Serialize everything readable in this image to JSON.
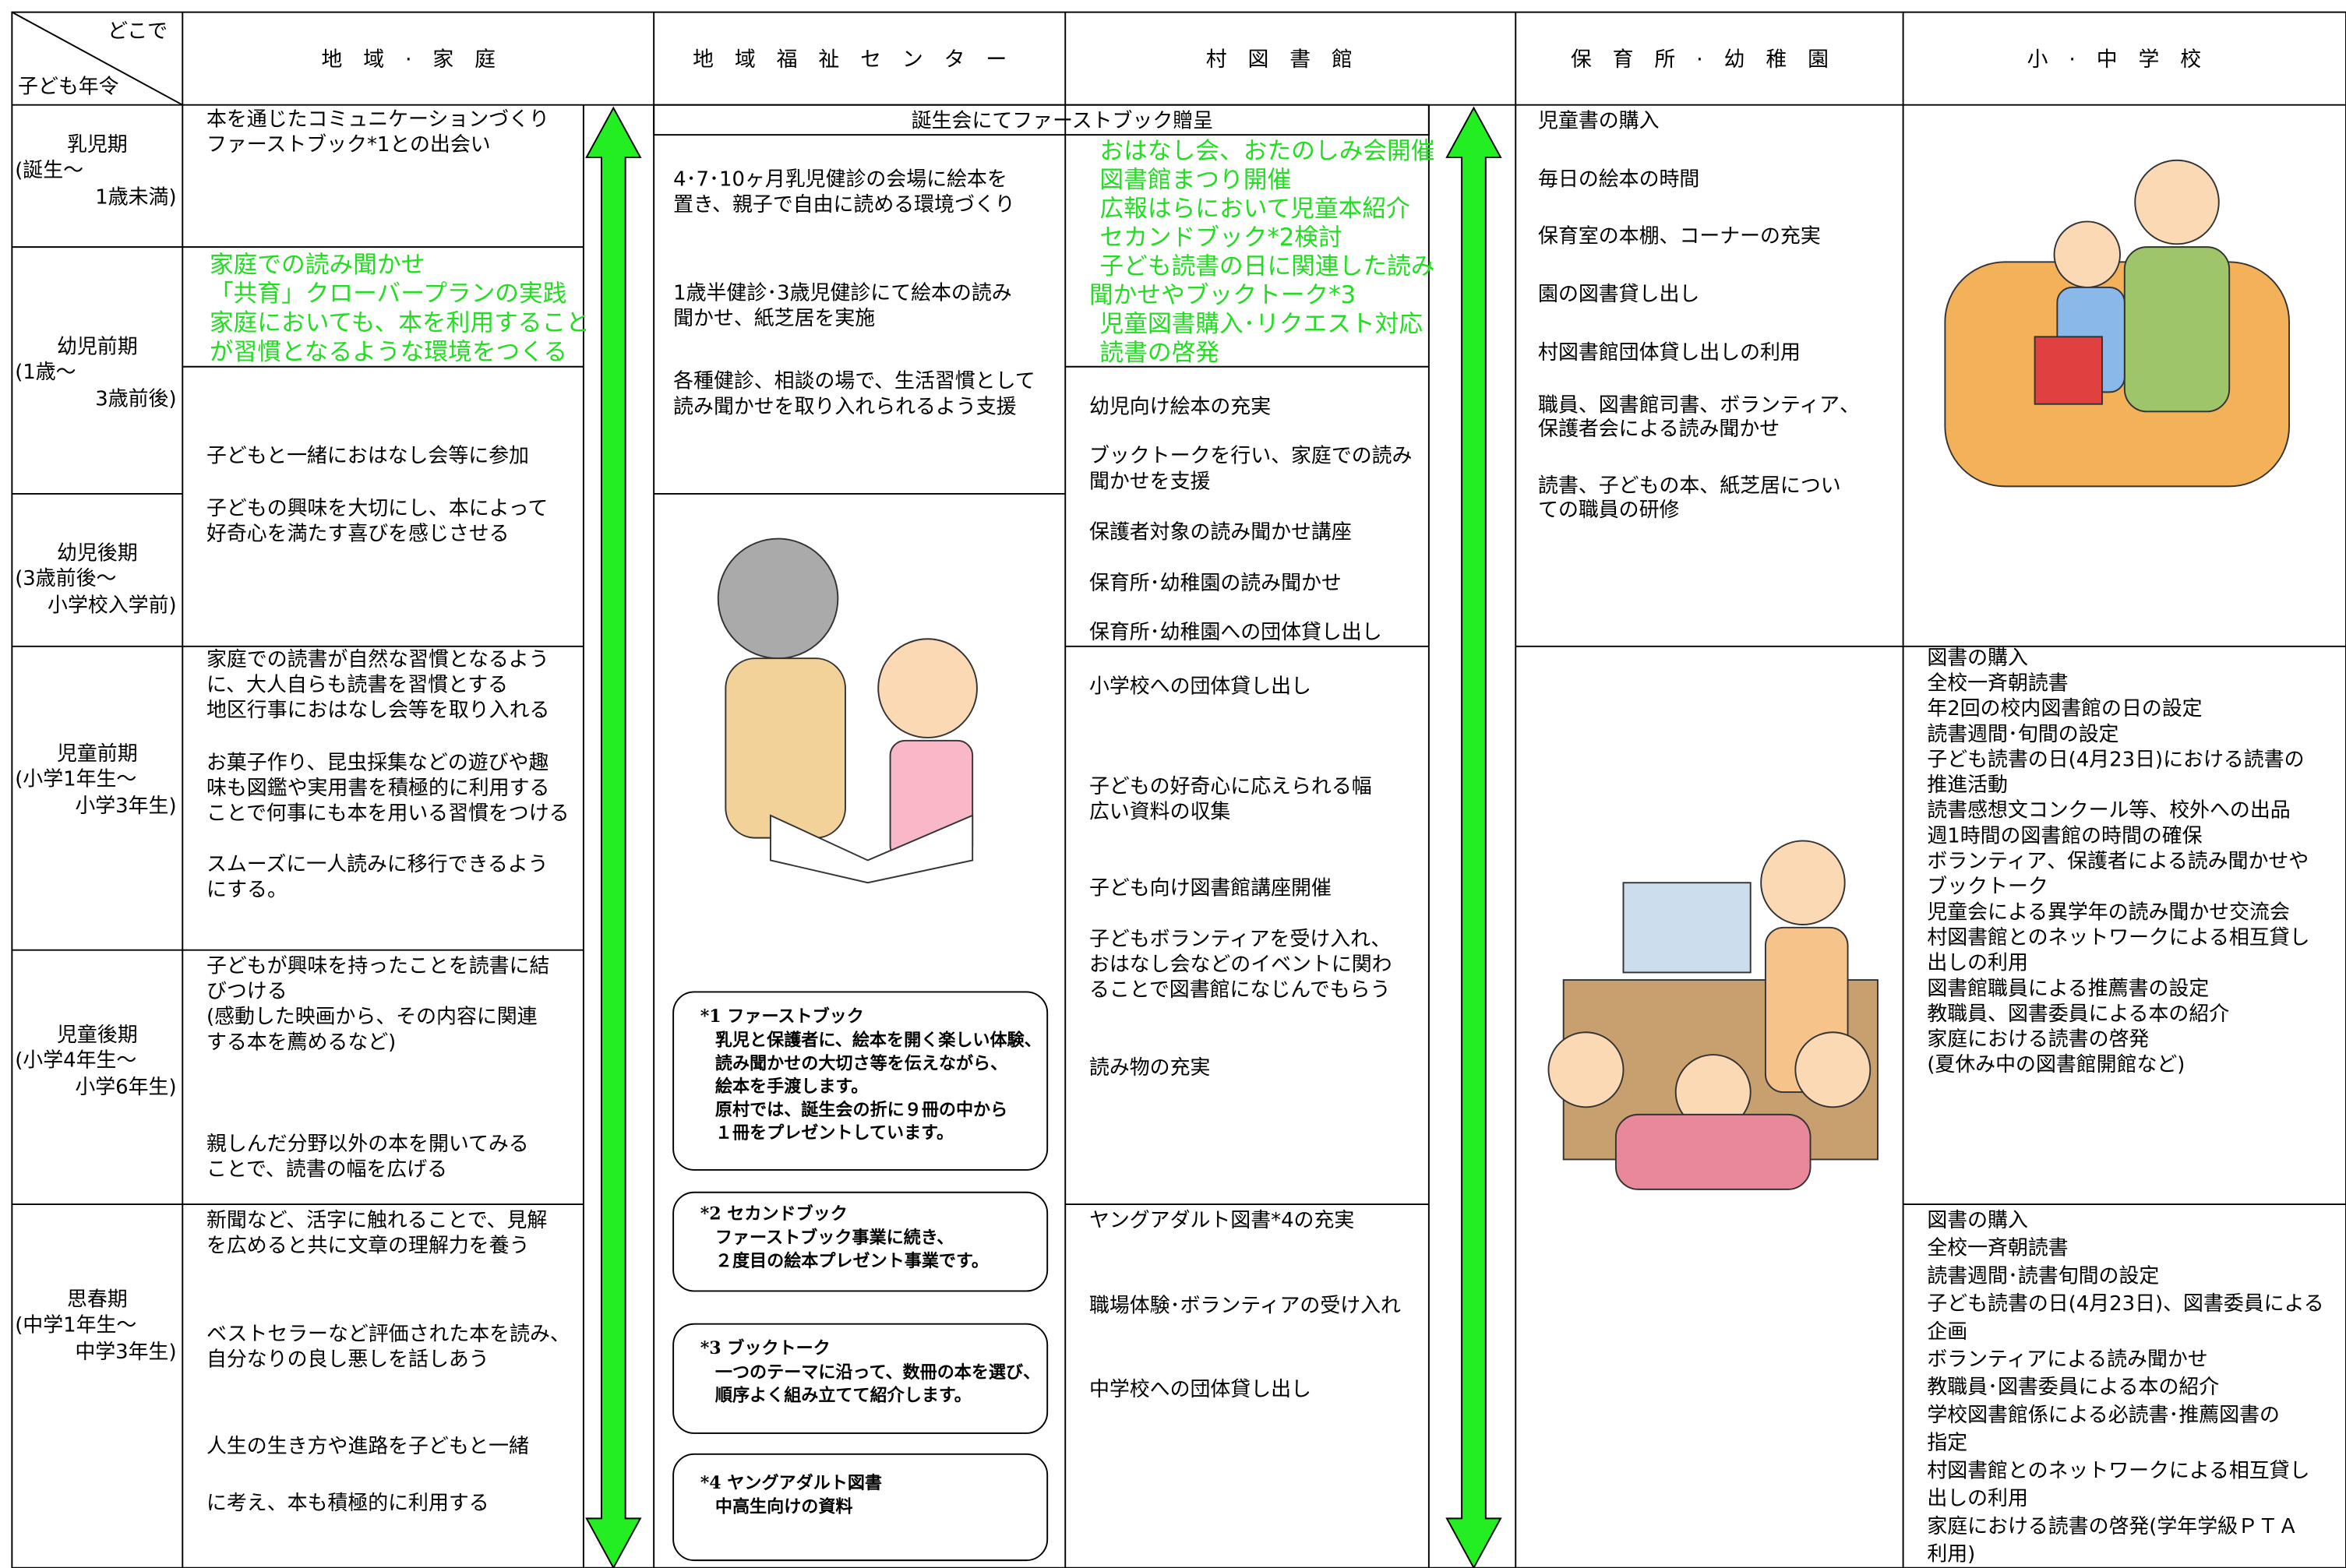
{
  "header": {
    "corner_top": "どこで",
    "corner_bottom": "子ども年令",
    "columns": [
      "地域·家庭",
      "地域福祉センター",
      "村図書館",
      "保育所·幼稚園",
      "小·中学校"
    ]
  },
  "ages": [
    {
      "name": "乳児期",
      "range": [
        "(誕生～",
        "1歳未満)"
      ]
    },
    {
      "name": "幼児前期",
      "range": [
        "(1歳～",
        "3歳前後)"
      ]
    },
    {
      "name": "幼児後期",
      "range": [
        "(3歳前後～",
        "小学校入学前)"
      ]
    },
    {
      "name": "児童前期",
      "range": [
        "(小学1年生～",
        "小学3年生)"
      ]
    },
    {
      "name": "児童後期",
      "range": [
        "(小学4年生～",
        "小学6年生)"
      ]
    },
    {
      "name": "思春期",
      "range": [
        "(中学1年生～",
        "中学3年生)"
      ]
    }
  ],
  "family": {
    "blocks": [
      [
        "本を通じたコミュニケーションづくり",
        "ファーストブック*1との出会い"
      ],
      [
        "子どもと一緒におはなし会等に参加"
      ],
      [
        "子どもの興味を大切にし、本によって",
        "好奇心を満たす喜びを感じさせる"
      ],
      [
        "家庭での読書が自然な習慣となるよう",
        "に、大人自らも読書を習慣とする",
        "地区行事におはなし会等を取り入れる"
      ],
      [
        "お菓子作り、昆虫採集などの遊びや趣",
        "味も図鑑や実用書を積極的に利用する",
        "ことで何事にも本を用いる習慣をつける"
      ],
      [
        "スムーズに一人読みに移行できるよう",
        "にする。"
      ],
      [
        "子どもが興味を持ったことを読書に結",
        "びつける",
        "(感動した映画から、その内容に関連",
        "する本を薦めるなど)"
      ],
      [
        "親しんだ分野以外の本を開いてみる",
        "ことで、読書の幅を広げる"
      ],
      [
        "新聞など、活字に触れることで、見解",
        "を広めると共に文章の理解力を養う"
      ],
      [
        "ベストセラーなど評価された本を読み、",
        "自分なりの良し悪しを話しあう"
      ],
      [
        "人生の生き方や進路を子どもと一緒"
      ],
      [
        "に考え、本も積極的に利用する"
      ]
    ],
    "green": [
      "家庭での読み聞かせ",
      "「共育」クローバープランの実践",
      "家庭においても、本を利用すること",
      "が習慣となるような環境をつくる"
    ]
  },
  "welfare": {
    "blocks": [
      [
        "4･7･10ヶ月乳児健診の会場に絵本を",
        "置き、親子で自由に読める環境づくり"
      ],
      [
        "1歳半健診･3歳児健診にて絵本の読み",
        "聞かせ、紙芝居を実施"
      ],
      [
        "各種健診、相談の場で、生活習慣として",
        "読み聞かせを取り入れられるよう支援"
      ]
    ],
    "notes": [
      {
        "title": "*1 ファーストブック",
        "lines": [
          "乳児と保護者に、絵本を開く楽しい体験、",
          "読み聞かせの大切さ等を伝えながら、",
          "絵本を手渡します。",
          "原村では、誕生会の折に９冊の中から",
          "１冊をプレゼントしています。"
        ]
      },
      {
        "title": "*2 セカンドブック",
        "lines": [
          "ファーストブック事業に続き、",
          "２度目の絵本プレゼント事業です。"
        ]
      },
      {
        "title": "*3 ブックトーク",
        "lines": [
          "一つのテーマに沿って、数冊の本を選び、",
          "順序よく組み立てて紹介します。"
        ]
      },
      {
        "title": "*4 ヤングアダルト図書",
        "lines": [
          "中高生向けの資料"
        ]
      }
    ]
  },
  "library": {
    "top": "誕生会にてファーストブック贈呈",
    "green": [
      "おはなし会、おたのしみ会開催",
      "図書館まつり開催",
      "広報はらにおいて児童本紹介",
      "セカンドブック*2検討",
      "子ども読書の日に関連した読み",
      "聞かせやブックトーク*3",
      "児童図書購入･リクエスト対応",
      "読書の啓発"
    ],
    "blocks": [
      [
        "幼児向け絵本の充実"
      ],
      [
        "ブックトークを行い、家庭での読み",
        "聞かせを支援"
      ],
      [
        "保護者対象の読み聞かせ講座"
      ],
      [
        "保育所･幼稚園の読み聞かせ"
      ],
      [
        "保育所･幼稚園への団体貸し出し"
      ],
      [
        "小学校への団体貸し出し"
      ],
      [
        "子どもの好奇心に応えられる幅",
        "広い資料の収集"
      ],
      [
        "子ども向け図書館講座開催"
      ],
      [
        "子どもボランティアを受け入れ、",
        "おはなし会などのイベントに関わ",
        "ることで図書館になじんでもらう"
      ],
      [
        "読み物の充実"
      ],
      [
        "ヤングアダルト図書*4の充実"
      ],
      [
        "職場体験･ボランティアの受け入れ"
      ],
      [
        "中学校への団体貸し出し"
      ]
    ]
  },
  "nursery": {
    "blocks": [
      [
        "児童書の購入"
      ],
      [
        "毎日の絵本の時間"
      ],
      [
        "保育室の本棚、コーナーの充実"
      ],
      [
        "園の図書貸し出し"
      ],
      [
        "村図書館団体貸し出しの利用"
      ],
      [
        "職員、図書館司書、ボランティア、",
        "保護者会による読み聞かせ"
      ],
      [
        "読書、子どもの本、紙芝居につい",
        "ての職員の研修"
      ]
    ]
  },
  "school": {
    "elementary": [
      "図書の購入",
      "全校一斉朝読書",
      "年2回の校内図書館の日の設定",
      "読書週間･旬間の設定",
      "子ども読書の日(4月23日)における読書の",
      "推進活動",
      "読書感想文コンクール等、校外への出品",
      "週1時間の図書館の時間の確保",
      "ボランティア、保護者による読み聞かせや",
      "ブックトーク",
      "児童会による異学年の読み聞かせ交流会",
      "村図書館とのネットワークによる相互貸し",
      "出しの利用",
      "図書館職員による推薦書の設定",
      "教職員、図書委員による本の紹介",
      "家庭における読書の啓発",
      "(夏休み中の図書館開館など)"
    ],
    "junior_high": [
      "図書の購入",
      "全校一斉朝読書",
      "読書週間･読書旬間の設定",
      "子ども読書の日(4月23日)、図書委員による",
      "企画",
      "ボランティアによる読み聞かせ",
      "教職員･図書委員による本の紹介",
      "学校図書館係による必読書･推薦図書の",
      "指定",
      "村図書館とのネットワークによる相互貸し",
      "出しの利用",
      "家庭における読書の啓発(学年学級ＰＴＡ",
      "利用)"
    ]
  }
}
